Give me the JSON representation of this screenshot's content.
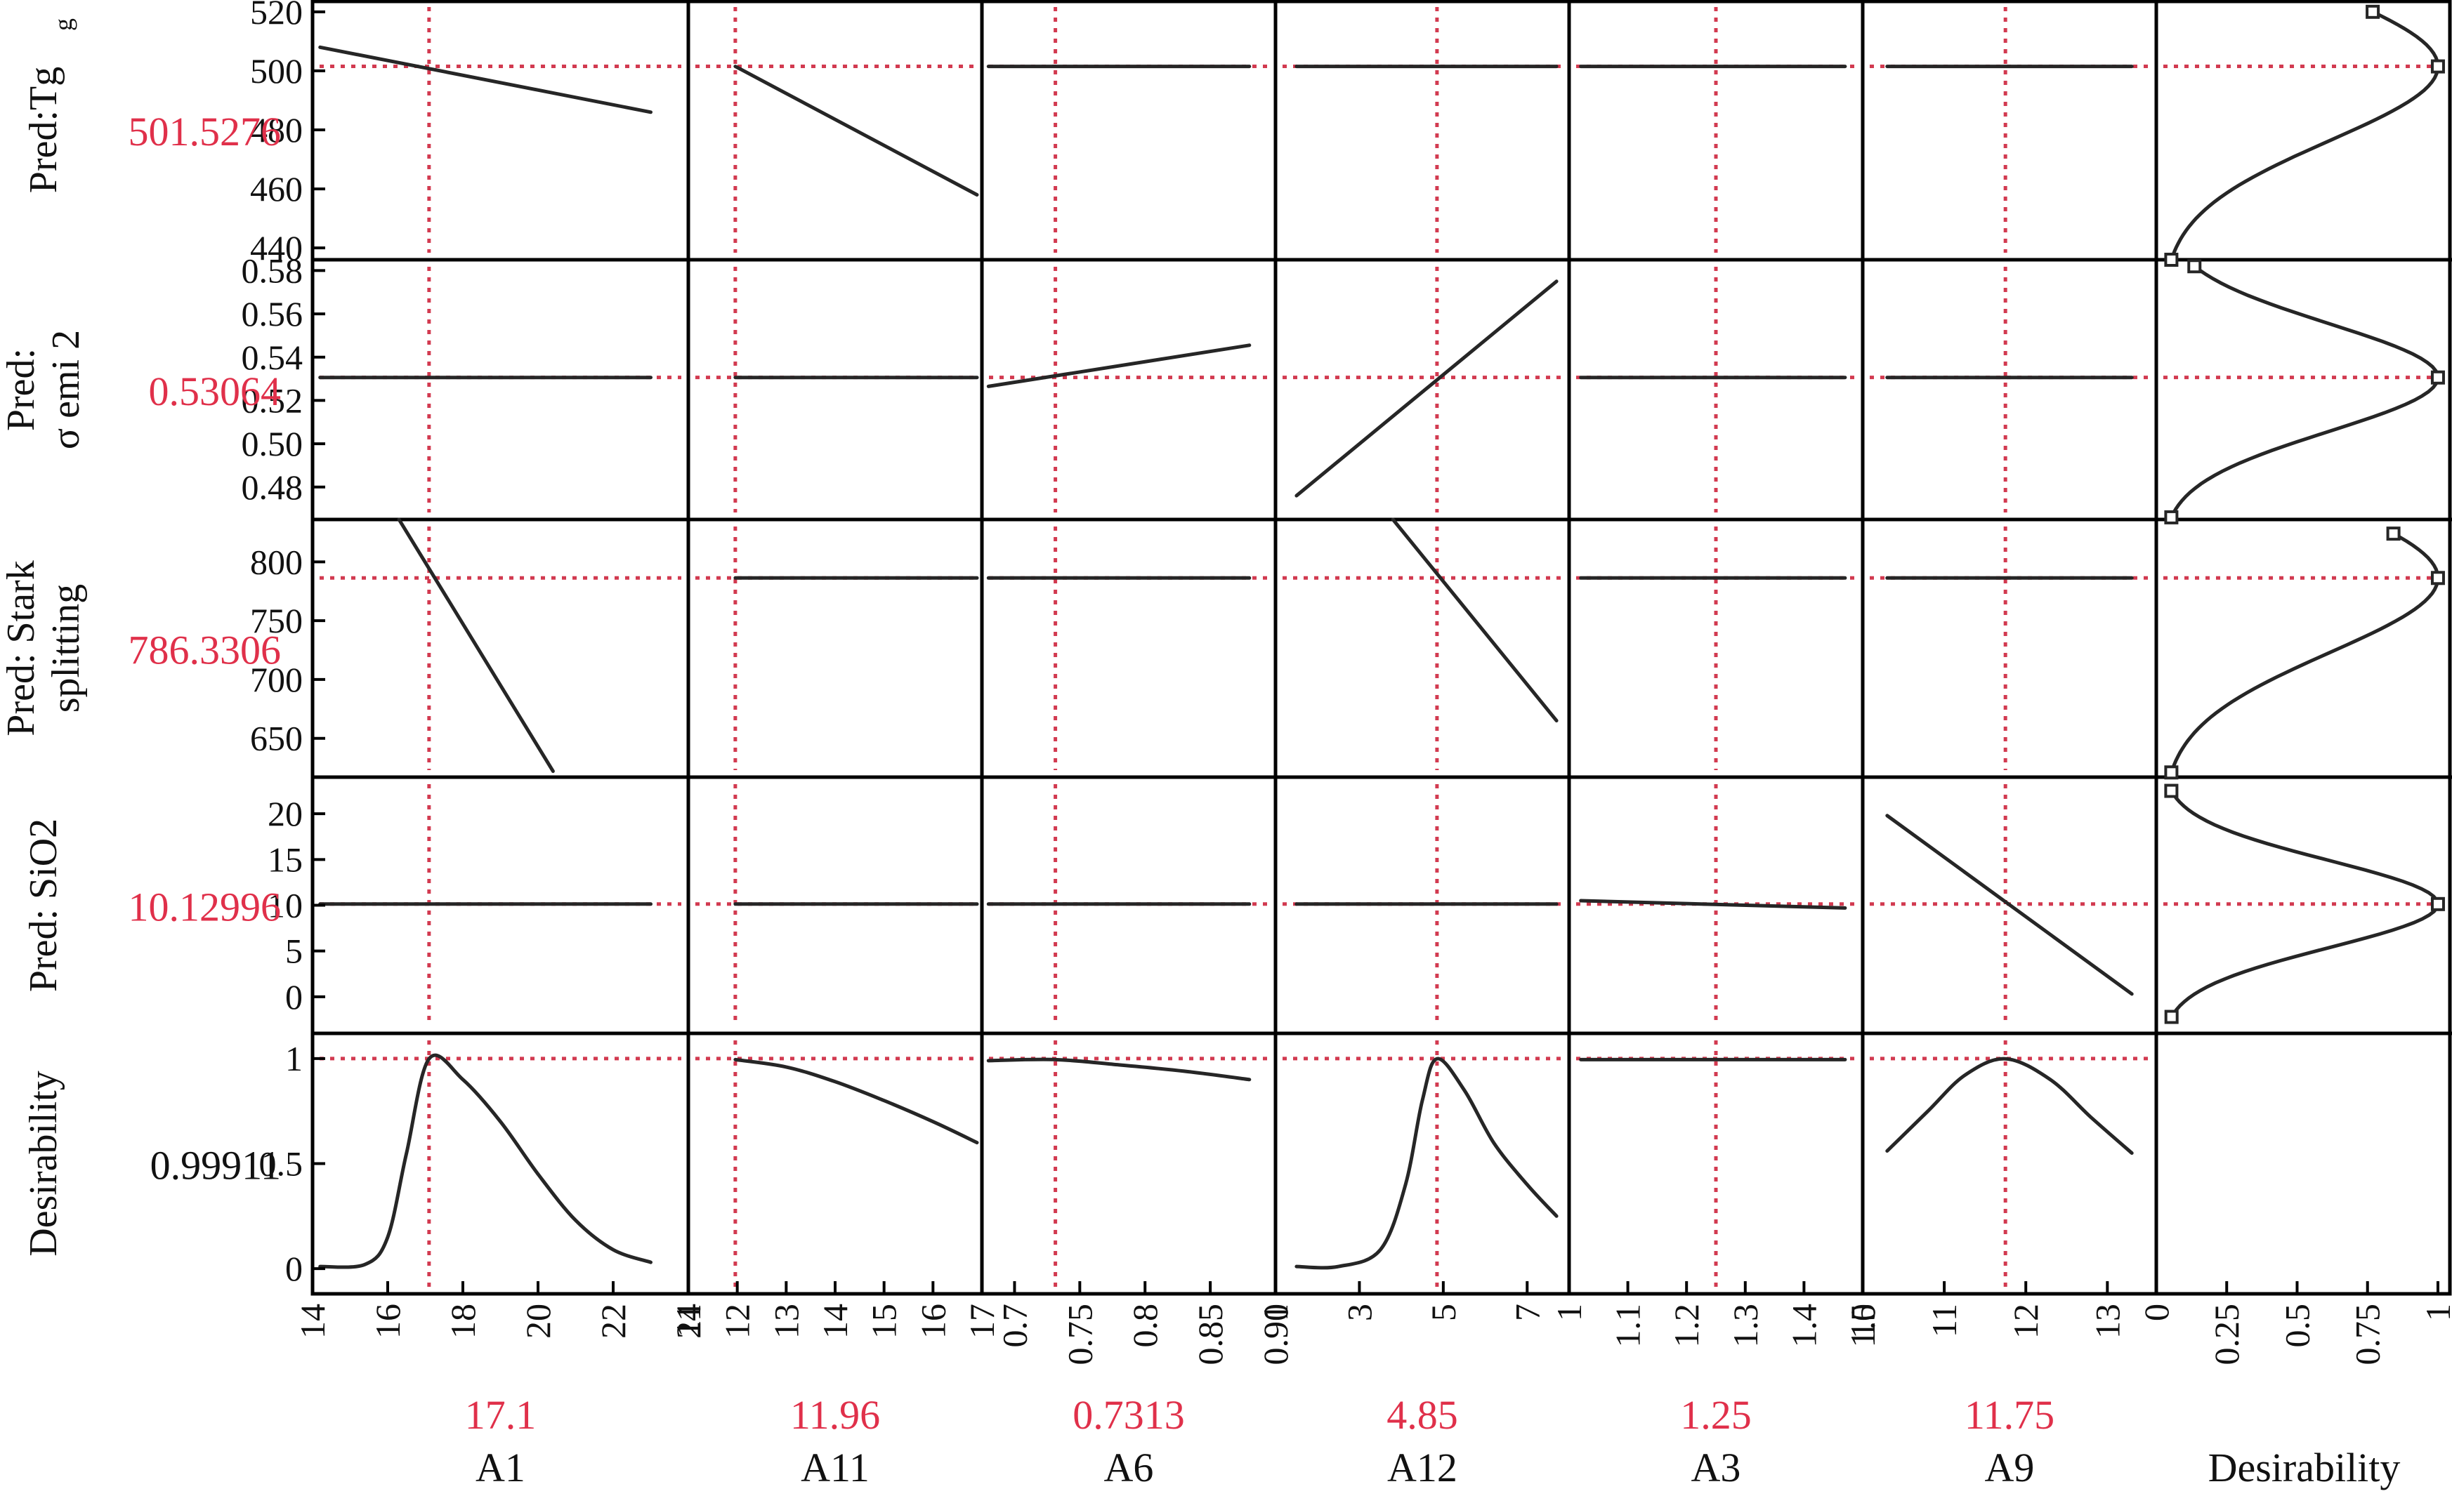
{
  "colors": {
    "curve": "#262626",
    "ref": "#d23a50",
    "value": "#e0304a",
    "frame": "#000000",
    "text": "#111111"
  },
  "rows": [
    {
      "label_lines": [
        "Pred:Tg"
      ],
      "label_sub": "g",
      "value": "501.5276",
      "ylim": [
        436,
        524
      ],
      "ticks": [
        440,
        460,
        480,
        500,
        520
      ],
      "tick_labels": [
        "440",
        "460",
        "480",
        "500",
        "520"
      ]
    },
    {
      "label_lines": [
        "Pred:",
        "σ emi 2"
      ],
      "value": "0.53064",
      "ylim": [
        0.465,
        0.585
      ],
      "ticks": [
        0.48,
        0.5,
        0.52,
        0.54,
        0.56,
        0.58
      ],
      "tick_labels": [
        "0.48",
        "0.50",
        "0.52",
        "0.54",
        "0.56",
        "0.58"
      ]
    },
    {
      "label_lines": [
        "Pred: Stark",
        "splitting"
      ],
      "value": "786.3306",
      "ylim": [
        617,
        836
      ],
      "ticks": [
        650,
        700,
        750,
        800
      ],
      "tick_labels": [
        "650",
        "700",
        "750",
        "800"
      ]
    },
    {
      "label_lines": [
        "Pred: SiO2"
      ],
      "value": "10.12996",
      "ylim": [
        -4,
        24
      ],
      "ticks": [
        0,
        5,
        10,
        15,
        20
      ],
      "tick_labels": [
        "0",
        "5",
        "10",
        "15",
        "20"
      ]
    },
    {
      "label_lines": [
        "Desirability"
      ],
      "value": "0.99911",
      "ylim": [
        -0.12,
        1.12
      ],
      "ticks": [
        0,
        0.5,
        1
      ],
      "tick_labels": [
        "0",
        "0.5",
        "1"
      ]
    }
  ],
  "columns": [
    {
      "name": "A1",
      "value": "17.1",
      "xlim": [
        14,
        24
      ],
      "ticks": [
        14,
        16,
        18,
        20,
        22,
        24
      ],
      "tick_labels": [
        "14",
        "16",
        "18",
        "20",
        "22",
        "24"
      ]
    },
    {
      "name": "A11",
      "value": "11.96",
      "xlim": [
        11,
        17
      ],
      "ticks": [
        11,
        12,
        13,
        14,
        15,
        16,
        17
      ],
      "tick_labels": [
        "11",
        "12",
        "13",
        "14",
        "15",
        "16",
        "17"
      ]
    },
    {
      "name": "A6",
      "value": "0.7313",
      "xlim": [
        0.675,
        0.9
      ],
      "ticks": [
        0.7,
        0.75,
        0.8,
        0.85,
        0.9
      ],
      "tick_labels": [
        "0.7",
        "0.75",
        "0.8",
        "0.85",
        "0.90"
      ]
    },
    {
      "name": "A12",
      "value": "4.85",
      "xlim": [
        1,
        8
      ],
      "ticks": [
        1,
        3,
        5,
        7
      ],
      "tick_labels": [
        "1",
        "3",
        "5",
        "7"
      ]
    },
    {
      "name": "A3",
      "value": "1.25",
      "xlim": [
        1,
        1.5
      ],
      "ticks": [
        1,
        1.1,
        1.2,
        1.3,
        1.4,
        1.5
      ],
      "tick_labels": [
        "1",
        "1.1",
        "1.2",
        "1.3",
        "1.4",
        "1.5"
      ]
    },
    {
      "name": "A9",
      "value": "11.75",
      "xlim": [
        10,
        13.6
      ],
      "ticks": [
        10,
        11,
        12,
        13
      ],
      "tick_labels": [
        "10",
        "11",
        "12",
        "13"
      ]
    },
    {
      "name": "Desirability",
      "value": "",
      "xlim": [
        0,
        1.05
      ],
      "ticks": [
        0,
        0.25,
        0.5,
        0.75,
        1
      ],
      "tick_labels": [
        "0",
        "0.25",
        "0.5",
        "0.75",
        "1"
      ]
    }
  ],
  "chart_data": {
    "type": "line",
    "title": "",
    "current_setting": {
      "A1": 17.1,
      "A11": 11.96,
      "A6": 0.7313,
      "A12": 4.85,
      "A3": 1.25,
      "A9": 11.75
    },
    "predictions": {
      "Tg": 501.5276,
      "sigma_emi_2": 0.53064,
      "Stark_splitting": 786.3306,
      "SiO2": 10.12996,
      "Desirability": 0.99911
    },
    "profiles": [
      {
        "row": 0,
        "col": 0,
        "x": [
          14.2,
          23
        ],
        "y": [
          508,
          486
        ]
      },
      {
        "row": 0,
        "col": 1,
        "x": [
          11.96,
          16.9
        ],
        "y": [
          501.5,
          458
        ]
      },
      {
        "row": 0,
        "col": 2,
        "x": [
          0.68,
          0.88
        ],
        "y": [
          501.5,
          501.5
        ]
      },
      {
        "row": 0,
        "col": 3,
        "x": [
          1.5,
          7.7
        ],
        "y": [
          501.5,
          501.5
        ]
      },
      {
        "row": 0,
        "col": 4,
        "x": [
          1.02,
          1.47
        ],
        "y": [
          501.5,
          501.5
        ]
      },
      {
        "row": 0,
        "col": 5,
        "x": [
          10.3,
          13.3
        ],
        "y": [
          501.5,
          501.5
        ]
      },
      {
        "row": 1,
        "col": 0,
        "x": [
          14.2,
          23
        ],
        "y": [
          0.5306,
          0.5306
        ]
      },
      {
        "row": 1,
        "col": 1,
        "x": [
          11.96,
          16.9
        ],
        "y": [
          0.5306,
          0.5306
        ]
      },
      {
        "row": 1,
        "col": 2,
        "x": [
          0.68,
          0.88
        ],
        "y": [
          0.5265,
          0.5455
        ]
      },
      {
        "row": 1,
        "col": 3,
        "x": [
          1.5,
          7.7
        ],
        "y": [
          0.476,
          0.575
        ]
      },
      {
        "row": 1,
        "col": 4,
        "x": [
          1.02,
          1.47
        ],
        "y": [
          0.5306,
          0.5306
        ]
      },
      {
        "row": 1,
        "col": 5,
        "x": [
          10.3,
          13.3
        ],
        "y": [
          0.5306,
          0.5306
        ]
      },
      {
        "row": 2,
        "col": 0,
        "x": [
          16.3,
          20.4
        ],
        "y": [
          836,
          622
        ]
      },
      {
        "row": 2,
        "col": 1,
        "x": [
          11.96,
          16.9
        ],
        "y": [
          786.3,
          786.3
        ]
      },
      {
        "row": 2,
        "col": 2,
        "x": [
          0.68,
          0.88
        ],
        "y": [
          786.3,
          786.3
        ]
      },
      {
        "row": 2,
        "col": 3,
        "x": [
          3.8,
          7.7
        ],
        "y": [
          836,
          665
        ]
      },
      {
        "row": 2,
        "col": 4,
        "x": [
          1.02,
          1.47
        ],
        "y": [
          786.3,
          786.3
        ]
      },
      {
        "row": 2,
        "col": 5,
        "x": [
          10.3,
          13.3
        ],
        "y": [
          786.3,
          786.3
        ]
      },
      {
        "row": 3,
        "col": 0,
        "x": [
          14.2,
          23
        ],
        "y": [
          10.13,
          10.13
        ]
      },
      {
        "row": 3,
        "col": 1,
        "x": [
          11.96,
          16.9
        ],
        "y": [
          10.13,
          10.13
        ]
      },
      {
        "row": 3,
        "col": 2,
        "x": [
          0.68,
          0.88
        ],
        "y": [
          10.13,
          10.13
        ]
      },
      {
        "row": 3,
        "col": 3,
        "x": [
          1.5,
          7.7
        ],
        "y": [
          10.13,
          10.13
        ]
      },
      {
        "row": 3,
        "col": 4,
        "x": [
          1.02,
          1.47
        ],
        "y": [
          10.5,
          9.7
        ]
      },
      {
        "row": 3,
        "col": 5,
        "x": [
          10.3,
          13.3
        ],
        "y": [
          19.8,
          0.3
        ]
      },
      {
        "row": 4,
        "col": 0,
        "x": [
          14.2,
          15.4,
          16.0,
          16.5,
          17.1,
          18.0,
          19.0,
          20.0,
          21.0,
          22.0,
          23.0
        ],
        "y": [
          0.01,
          0.02,
          0.15,
          0.55,
          0.999,
          0.9,
          0.7,
          0.45,
          0.23,
          0.09,
          0.03
        ]
      },
      {
        "row": 4,
        "col": 1,
        "x": [
          11.96,
          13,
          14,
          15,
          16,
          16.9
        ],
        "y": [
          0.995,
          0.96,
          0.89,
          0.8,
          0.7,
          0.6
        ]
      },
      {
        "row": 4,
        "col": 2,
        "x": [
          0.68,
          0.7313,
          0.78,
          0.83,
          0.88
        ],
        "y": [
          0.99,
          0.995,
          0.97,
          0.94,
          0.9
        ]
      },
      {
        "row": 4,
        "col": 3,
        "x": [
          1.5,
          2.5,
          3.5,
          4.1,
          4.5,
          4.85,
          5.5,
          6.2,
          7.0,
          7.7
        ],
        "y": [
          0.01,
          0.01,
          0.09,
          0.4,
          0.8,
          0.999,
          0.85,
          0.6,
          0.4,
          0.25
        ]
      },
      {
        "row": 4,
        "col": 4,
        "x": [
          1.02,
          1.47
        ],
        "y": [
          0.995,
          0.995
        ]
      },
      {
        "row": 4,
        "col": 5,
        "x": [
          10.3,
          10.8,
          11.25,
          11.75,
          12.3,
          12.8,
          13.3
        ],
        "y": [
          0.56,
          0.75,
          0.92,
          0.999,
          0.9,
          0.72,
          0.55
        ]
      }
    ],
    "desirability_functions": [
      {
        "row": 0,
        "y_range": [
          436,
          520
        ],
        "peak_y": 501.5
      },
      {
        "row": 1,
        "y_range": [
          0.466,
          0.582
        ],
        "peak_y": 0.5306
      },
      {
        "row": 2,
        "y_range": [
          621,
          824
        ],
        "peak_y": 786.3
      },
      {
        "row": 3,
        "y_range": [
          -2.2,
          22.5
        ],
        "peak_y": 10.13
      }
    ]
  }
}
